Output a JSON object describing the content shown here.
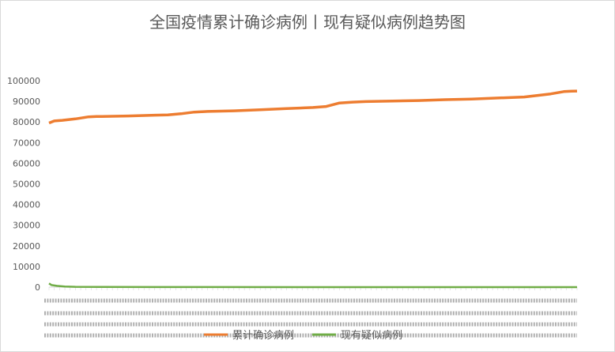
{
  "chart_data": {
    "type": "line",
    "title": "全国疫情累计确诊病例丨现有疑似病例趋势图",
    "ylim": [
      0,
      100000
    ],
    "yticks": [
      0,
      10000,
      20000,
      30000,
      40000,
      50000,
      60000,
      70000,
      80000,
      90000,
      100000
    ],
    "grid": false,
    "legend_position": "bottom",
    "series": [
      {
        "name": "累计确诊病例",
        "color": "#ed7d31",
        "x_index": [
          0,
          2,
          5,
          10,
          15,
          18,
          20,
          30,
          40,
          45,
          50,
          55,
          58,
          60,
          70,
          80,
          90,
          100,
          105,
          110,
          115,
          120,
          130,
          140,
          150,
          160,
          170,
          180,
          190,
          195,
          198,
          200
        ],
        "values": [
          79500,
          80500,
          80800,
          81500,
          82500,
          82700,
          82700,
          82900,
          83300,
          83400,
          84000,
          84800,
          85000,
          85100,
          85400,
          85900,
          86500,
          87000,
          87500,
          89200,
          89600,
          89900,
          90100,
          90400,
          90800,
          91100,
          91600,
          92100,
          93600,
          94700,
          94900,
          95000
        ]
      },
      {
        "name": "现有疑似病例",
        "color": "#70ad47",
        "x_index": [
          0,
          1,
          3,
          6,
          10,
          20,
          40,
          60,
          100,
          150,
          200
        ],
        "values": [
          1800,
          1000,
          600,
          300,
          150,
          80,
          40,
          20,
          10,
          5,
          5
        ]
      }
    ]
  }
}
